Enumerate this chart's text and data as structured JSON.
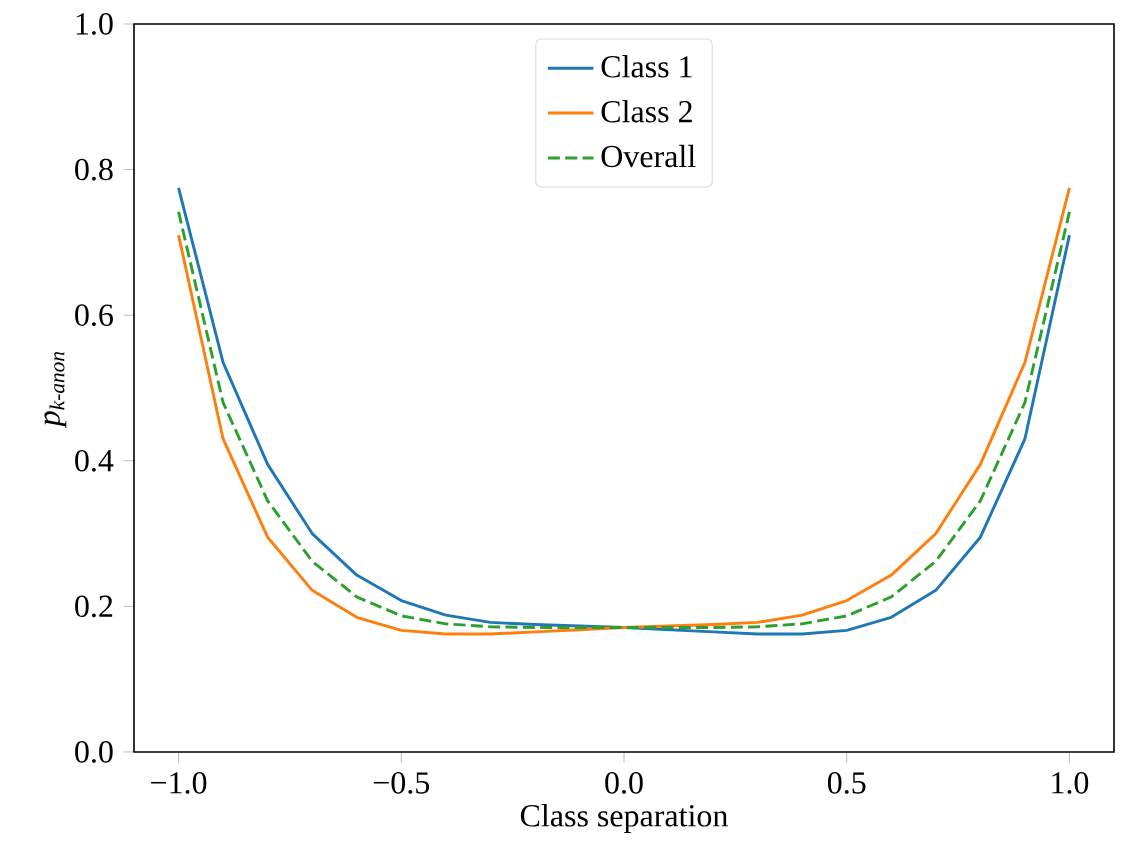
{
  "chart_data": {
    "type": "line",
    "xlabel": "Class separation",
    "ylabel": "p$_{k-anon}$",
    "x": [
      -1.0,
      -0.9,
      -0.8,
      -0.7,
      -0.6,
      -0.5,
      -0.4,
      -0.3,
      -0.2,
      -0.1,
      0.0,
      0.1,
      0.2,
      0.3,
      0.4,
      0.5,
      0.6,
      0.7,
      0.8,
      0.9,
      1.0
    ],
    "series": [
      {
        "name": "Class 1",
        "color": "#1f77b4",
        "line_style": "solid",
        "values": [
          0.775,
          0.535,
          0.395,
          0.3,
          0.243,
          0.208,
          0.188,
          0.178,
          0.175,
          0.173,
          0.171,
          0.168,
          0.165,
          0.162,
          0.162,
          0.167,
          0.185,
          0.222,
          0.295,
          0.43,
          0.71
        ]
      },
      {
        "name": "Class 2",
        "color": "#ff7f0e",
        "line_style": "solid",
        "values": [
          0.71,
          0.43,
          0.295,
          0.222,
          0.185,
          0.167,
          0.162,
          0.162,
          0.165,
          0.168,
          0.171,
          0.173,
          0.175,
          0.178,
          0.188,
          0.208,
          0.243,
          0.3,
          0.395,
          0.535,
          0.775
        ]
      },
      {
        "name": "Overall",
        "color": "#2ca02c",
        "line_style": "dashed",
        "values": [
          0.742,
          0.48,
          0.345,
          0.262,
          0.213,
          0.187,
          0.176,
          0.172,
          0.171,
          0.171,
          0.171,
          0.171,
          0.171,
          0.172,
          0.176,
          0.187,
          0.213,
          0.262,
          0.345,
          0.48,
          0.742
        ]
      }
    ],
    "xlim": [
      -1.1,
      1.1
    ],
    "ylim": [
      0.0,
      1.0
    ],
    "xticks": [
      {
        "value": -1.0,
        "label": "−1.0"
      },
      {
        "value": -0.5,
        "label": "−0.5"
      },
      {
        "value": 0.0,
        "label": "0.0"
      },
      {
        "value": 0.5,
        "label": "0.5"
      },
      {
        "value": 1.0,
        "label": "1.0"
      }
    ],
    "yticks": [
      {
        "value": 0.0,
        "label": "0.0"
      },
      {
        "value": 0.2,
        "label": "0.2"
      },
      {
        "value": 0.4,
        "label": "0.4"
      },
      {
        "value": 0.6,
        "label": "0.6"
      },
      {
        "value": 0.8,
        "label": "0.8"
      },
      {
        "value": 1.0,
        "label": "1.0"
      }
    ],
    "grid": false,
    "legend": "top"
  }
}
